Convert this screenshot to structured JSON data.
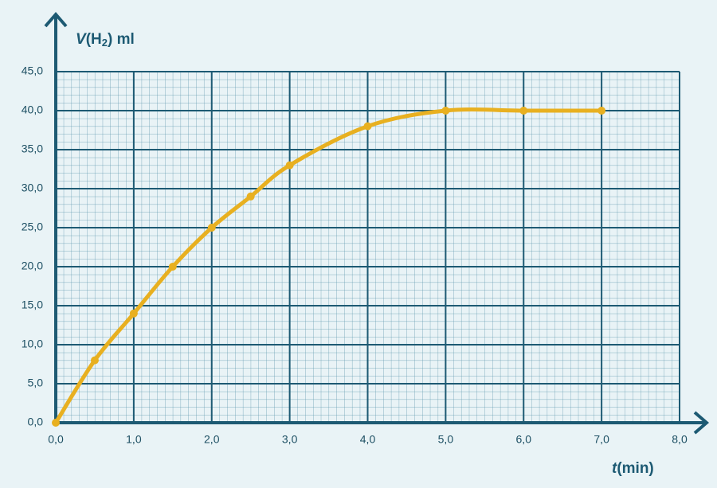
{
  "chart_data": {
    "type": "scatter",
    "x_label": [
      "t",
      "(min)"
    ],
    "y_label": [
      "V",
      "(H",
      "2",
      ") ml"
    ],
    "x": [
      0,
      0.5,
      1,
      1.5,
      2,
      2.5,
      3,
      4,
      5,
      6,
      7
    ],
    "values": [
      0,
      8,
      14,
      20,
      25,
      29,
      33,
      38,
      40,
      40,
      40
    ],
    "color": "#e8b020",
    "smooth": true,
    "xlim": [
      0,
      8
    ],
    "ylim": [
      0,
      45
    ],
    "xticks": [
      {
        "value": 0,
        "label": "0,0"
      },
      {
        "value": 1,
        "label": "1,0"
      },
      {
        "value": 2,
        "label": "2,0"
      },
      {
        "value": 3,
        "label": "3,0"
      },
      {
        "value": 4,
        "label": "4,0"
      },
      {
        "value": 5,
        "label": "5,0"
      },
      {
        "value": 6,
        "label": "6,0"
      },
      {
        "value": 7,
        "label": "7,0"
      },
      {
        "value": 8,
        "label": "8,0"
      }
    ],
    "yticks": [
      {
        "value": 0,
        "label": "0,0"
      },
      {
        "value": 5,
        "label": "5,0"
      },
      {
        "value": 10,
        "label": "10,0"
      },
      {
        "value": 15,
        "label": "15,0"
      },
      {
        "value": 20,
        "label": "20,0"
      },
      {
        "value": 25,
        "label": "25,0"
      },
      {
        "value": 30,
        "label": "30,0"
      },
      {
        "value": 35,
        "label": "35,0"
      },
      {
        "value": 40,
        "label": "40,0"
      },
      {
        "value": 45,
        "label": "45,0"
      }
    ],
    "grid": true
  }
}
